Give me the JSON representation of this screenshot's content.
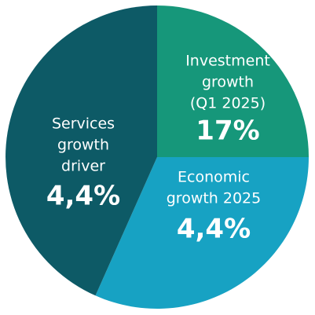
{
  "segments": [
    {
      "lines": [
        "Investment",
        "growth",
        "(Q1 2025)"
      ],
      "value": "17%"
    },
    {
      "lines": [
        "Economic",
        "growth 2025"
      ],
      "value": "4,4%"
    },
    {
      "lines": [
        "Services",
        "growth",
        "driver"
      ],
      "value": "4,4%"
    }
  ]
}
